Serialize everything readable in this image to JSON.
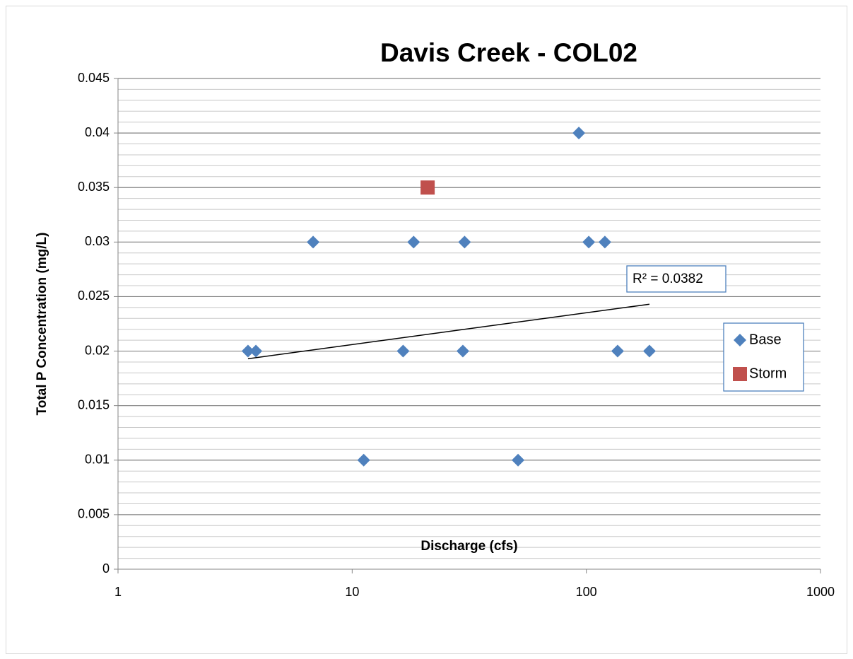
{
  "chart_data": {
    "type": "scatter",
    "title": "Davis Creek - COL02",
    "xlabel": "Discharge (cfs)",
    "ylabel": "Total P Concentration (mg/L)",
    "xscale": "log",
    "xlim": [
      1,
      1000
    ],
    "xticks": [
      1,
      10,
      100,
      1000
    ],
    "ylim": [
      0,
      0.045
    ],
    "yticks": [
      0,
      0.005,
      0.01,
      0.015,
      0.02,
      0.025,
      0.03,
      0.035,
      0.04,
      0.045
    ],
    "grid": true,
    "minor_grid": 0.001,
    "legend": "right",
    "series": [
      {
        "name": "Base",
        "color": "#4f81bd",
        "marker": "diamond",
        "x": [
          3.59,
          3.88,
          6.81,
          11.2,
          16.5,
          18.3,
          29.7,
          30.2,
          51.1,
          92.9,
          102.4,
          120,
          136,
          186
        ],
        "values": [
          0.02,
          0.02,
          0.03,
          0.01,
          0.02,
          0.03,
          0.02,
          0.03,
          0.01,
          0.04,
          0.03,
          0.03,
          0.02,
          0.02
        ]
      },
      {
        "name": "Storm",
        "color": "#c0504d",
        "marker": "square",
        "x": [
          21.0
        ],
        "values": [
          0.035
        ]
      }
    ],
    "trendline": {
      "x": [
        3.59,
        186
      ],
      "values": [
        0.0193,
        0.0243
      ],
      "color": "#000000",
      "annotation": "R² = 0.0382"
    }
  }
}
